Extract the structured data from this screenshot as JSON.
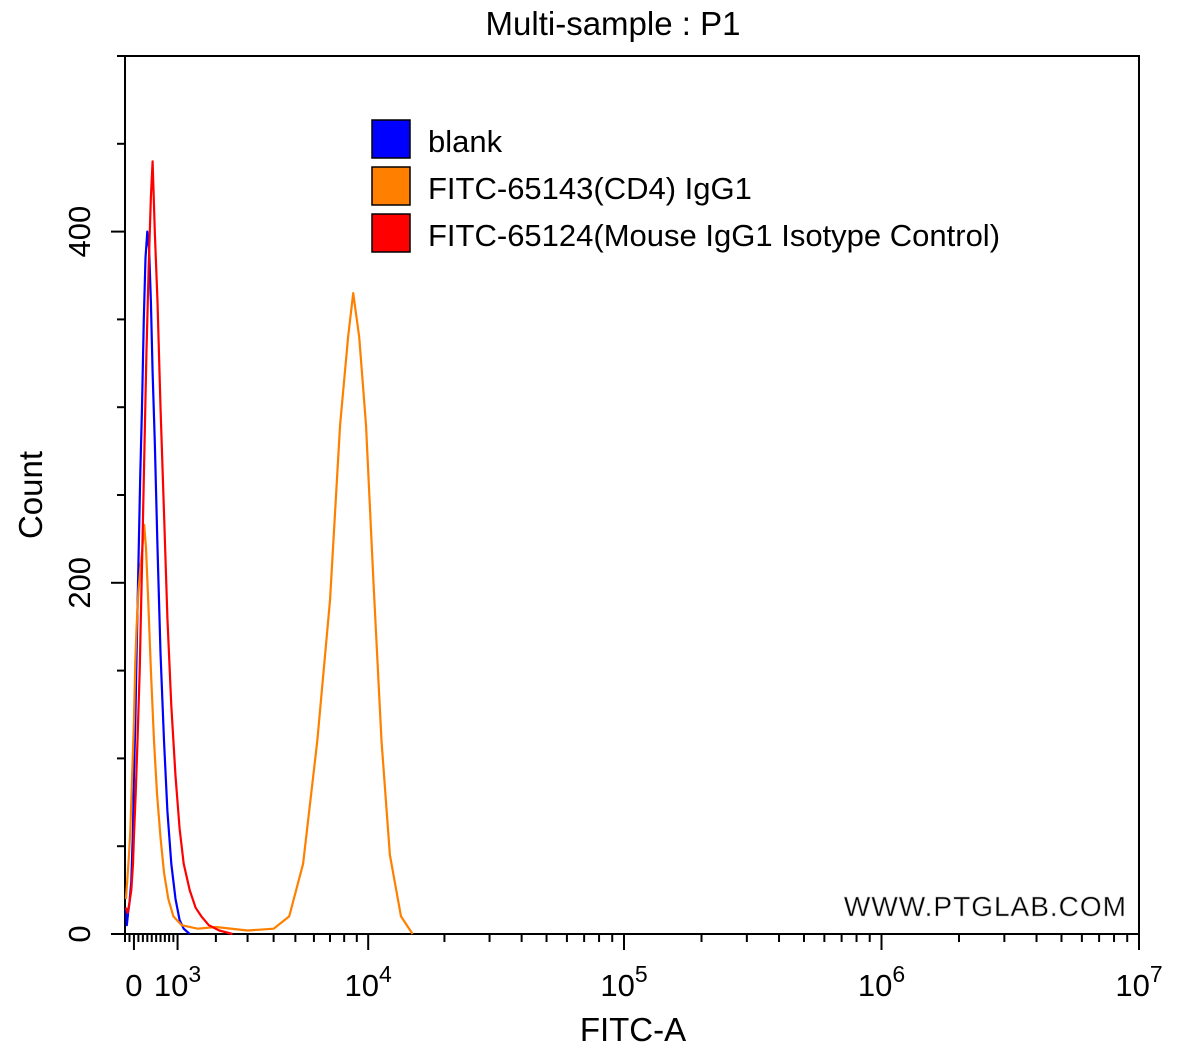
{
  "chart_data": {
    "type": "line",
    "title": "Multi-sample : P1",
    "xlabel": "FITC-A",
    "ylabel": "Count",
    "xscale": "biexponential",
    "xlim": [
      -200,
      10000000
    ],
    "ylim": [
      0,
      500
    ],
    "x_ticks": [
      {
        "value": 0,
        "label": "0"
      },
      {
        "value": 1000,
        "base": "10",
        "exp": "3"
      },
      {
        "value": 10000,
        "base": "10",
        "exp": "4"
      },
      {
        "value": 100000,
        "base": "10",
        "exp": "5"
      },
      {
        "value": 1000000,
        "base": "10",
        "exp": "6"
      },
      {
        "value": 10000000,
        "base": "10",
        "exp": "7"
      }
    ],
    "y_ticks": [
      0,
      200,
      400
    ],
    "legend": {
      "position": "top-center"
    },
    "watermark": "WWW.PTGLAB.COM",
    "series": [
      {
        "name": "blank",
        "color": "#0000ff",
        "points": [
          [
            -180,
            15
          ],
          [
            -160,
            5
          ],
          [
            -130,
            12
          ],
          [
            -100,
            18
          ],
          [
            -60,
            30
          ],
          [
            -20,
            60
          ],
          [
            0,
            90
          ],
          [
            30,
            120
          ],
          [
            60,
            160
          ],
          [
            100,
            210
          ],
          [
            140,
            260
          ],
          [
            180,
            300
          ],
          [
            220,
            350
          ],
          [
            260,
            385
          ],
          [
            300,
            400
          ],
          [
            340,
            390
          ],
          [
            380,
            360
          ],
          [
            420,
            320
          ],
          [
            470,
            280
          ],
          [
            530,
            220
          ],
          [
            600,
            160
          ],
          [
            680,
            110
          ],
          [
            760,
            70
          ],
          [
            850,
            40
          ],
          [
            950,
            20
          ],
          [
            1050,
            8
          ],
          [
            1150,
            3
          ],
          [
            1300,
            0
          ]
        ]
      },
      {
        "name": "FITC-65143(CD4) IgG1",
        "color": "#ff8000",
        "points": [
          [
            -180,
            20
          ],
          [
            -150,
            30
          ],
          [
            -110,
            45
          ],
          [
            -80,
            60
          ],
          [
            -40,
            90
          ],
          [
            0,
            120
          ],
          [
            30,
            155
          ],
          [
            60,
            175
          ],
          [
            100,
            195
          ],
          [
            150,
            210
          ],
          [
            190,
            220
          ],
          [
            230,
            233
          ],
          [
            270,
            220
          ],
          [
            320,
            190
          ],
          [
            380,
            150
          ],
          [
            450,
            110
          ],
          [
            520,
            80
          ],
          [
            600,
            55
          ],
          [
            680,
            35
          ],
          [
            780,
            20
          ],
          [
            900,
            10
          ],
          [
            1100,
            5
          ],
          [
            1500,
            3
          ],
          [
            2000,
            4
          ],
          [
            3000,
            2
          ],
          [
            4000,
            3
          ],
          [
            4700,
            10
          ],
          [
            5400,
            40
          ],
          [
            6200,
            110
          ],
          [
            7000,
            190
          ],
          [
            7700,
            290
          ],
          [
            8300,
            340
          ],
          [
            8700,
            365
          ],
          [
            9200,
            340
          ],
          [
            9800,
            290
          ],
          [
            10500,
            200
          ],
          [
            11300,
            110
          ],
          [
            12200,
            45
          ],
          [
            13500,
            10
          ],
          [
            15000,
            0
          ]
        ]
      },
      {
        "name": "FITC-65124(Mouse IgG1 Isotype Control)",
        "color": "#ff0000",
        "points": [
          [
            -180,
            15
          ],
          [
            -140,
            12
          ],
          [
            -100,
            18
          ],
          [
            -60,
            25
          ],
          [
            -20,
            40
          ],
          [
            0,
            55
          ],
          [
            40,
            80
          ],
          [
            80,
            110
          ],
          [
            130,
            150
          ],
          [
            180,
            210
          ],
          [
            230,
            270
          ],
          [
            280,
            330
          ],
          [
            330,
            380
          ],
          [
            380,
            420
          ],
          [
            420,
            440
          ],
          [
            470,
            400
          ],
          [
            530,
            360
          ],
          [
            600,
            300
          ],
          [
            680,
            240
          ],
          [
            760,
            180
          ],
          [
            850,
            130
          ],
          [
            950,
            90
          ],
          [
            1050,
            60
          ],
          [
            1150,
            40
          ],
          [
            1300,
            25
          ],
          [
            1450,
            15
          ],
          [
            1600,
            10
          ],
          [
            1800,
            5
          ],
          [
            2100,
            2
          ],
          [
            2500,
            0
          ]
        ]
      }
    ]
  }
}
